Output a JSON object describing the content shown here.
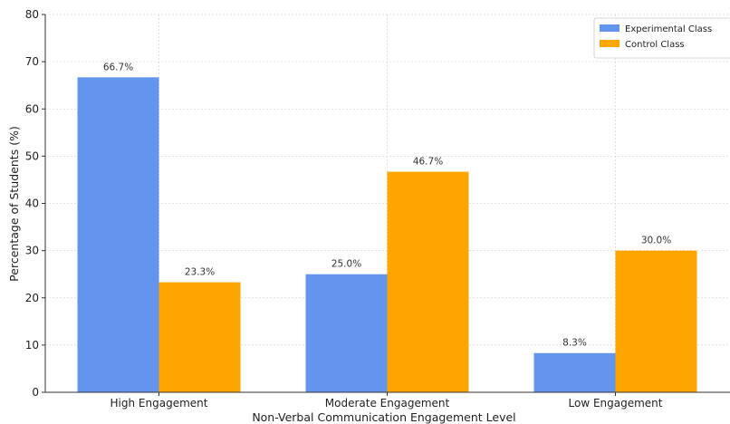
{
  "chart_data": {
    "type": "bar",
    "categories": [
      "High Engagement",
      "Moderate Engagement",
      "Low Engagement"
    ],
    "series": [
      {
        "name": "Experimental Class",
        "values": [
          66.7,
          25.0,
          8.3
        ],
        "labels": [
          "66.7%",
          "25.0%",
          "8.3%"
        ],
        "color": "#6495ED"
      },
      {
        "name": "Control Class",
        "values": [
          23.3,
          46.7,
          30.0
        ],
        "labels": [
          "23.3%",
          "46.7%",
          "30.0%"
        ],
        "color": "#FFA500"
      }
    ],
    "title": "",
    "xlabel": "Non-Verbal Communication Engagement Level",
    "ylabel": "Percentage of Students (%)",
    "ylim": [
      0,
      80
    ],
    "yticks": [
      0,
      10,
      20,
      30,
      40,
      50,
      60,
      70,
      80
    ],
    "grid": true,
    "legend_position": "top-right"
  }
}
